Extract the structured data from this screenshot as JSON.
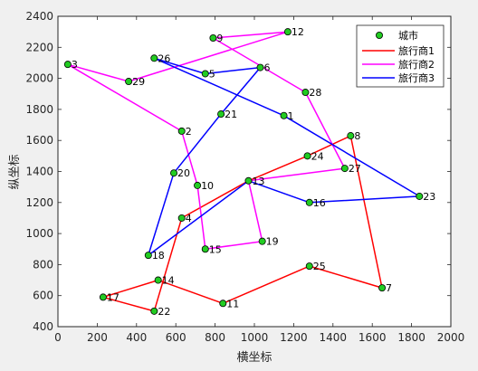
{
  "chart_data": {
    "type": "scatter",
    "xlabel": "横坐标",
    "ylabel": "纵坐标",
    "xlim": [
      0,
      2000
    ],
    "ylim": [
      400,
      2400
    ],
    "xticks": [
      0,
      200,
      400,
      600,
      800,
      1000,
      1200,
      1400,
      1600,
      1800,
      2000
    ],
    "yticks": [
      400,
      600,
      800,
      1000,
      1200,
      1400,
      1600,
      1800,
      2000,
      2200,
      2400
    ],
    "grid": false,
    "legend_position": "top-right",
    "cities": {
      "name": "城市",
      "color": "#22cc22",
      "points": [
        {
          "id": "1",
          "x": 1150,
          "y": 1760
        },
        {
          "id": "2",
          "x": 630,
          "y": 1660
        },
        {
          "id": "3",
          "x": 50,
          "y": 2090
        },
        {
          "id": "4",
          "x": 630,
          "y": 1100
        },
        {
          "id": "5",
          "x": 750,
          "y": 2030
        },
        {
          "id": "6",
          "x": 1030,
          "y": 2070
        },
        {
          "id": "7",
          "x": 1650,
          "y": 650
        },
        {
          "id": "8",
          "x": 1490,
          "y": 1630
        },
        {
          "id": "9",
          "x": 790,
          "y": 2260
        },
        {
          "id": "10",
          "x": 710,
          "y": 1310
        },
        {
          "id": "11",
          "x": 840,
          "y": 550
        },
        {
          "id": "12",
          "x": 1170,
          "y": 2300
        },
        {
          "id": "13",
          "x": 970,
          "y": 1340
        },
        {
          "id": "14",
          "x": 510,
          "y": 700
        },
        {
          "id": "15",
          "x": 750,
          "y": 900
        },
        {
          "id": "16",
          "x": 1280,
          "y": 1200
        },
        {
          "id": "17",
          "x": 230,
          "y": 590
        },
        {
          "id": "18",
          "x": 460,
          "y": 860
        },
        {
          "id": "19",
          "x": 1040,
          "y": 950
        },
        {
          "id": "20",
          "x": 590,
          "y": 1390
        },
        {
          "id": "21",
          "x": 830,
          "y": 1770
        },
        {
          "id": "22",
          "x": 490,
          "y": 500
        },
        {
          "id": "23",
          "x": 1840,
          "y": 1240
        },
        {
          "id": "24",
          "x": 1270,
          "y": 1500
        },
        {
          "id": "25",
          "x": 1280,
          "y": 790
        },
        {
          "id": "26",
          "x": 490,
          "y": 2130
        },
        {
          "id": "27",
          "x": 1460,
          "y": 1420
        },
        {
          "id": "28",
          "x": 1260,
          "y": 1910
        },
        {
          "id": "29",
          "x": 360,
          "y": 1980
        }
      ]
    },
    "series": [
      {
        "name": "旅行商1",
        "color": "#ff0000",
        "route": [
          "13",
          "24",
          "8",
          "7",
          "25",
          "11",
          "14",
          "17",
          "22",
          "4",
          "13"
        ]
      },
      {
        "name": "旅行商2",
        "color": "#ff00ff",
        "route": [
          "13",
          "27",
          "28",
          "9",
          "12",
          "29",
          "3",
          "2",
          "10",
          "15",
          "19",
          "13"
        ]
      },
      {
        "name": "旅行商3",
        "color": "#0000ff",
        "route": [
          "13",
          "18",
          "20",
          "21",
          "6",
          "5",
          "26",
          "1",
          "23",
          "16",
          "13"
        ]
      }
    ]
  }
}
